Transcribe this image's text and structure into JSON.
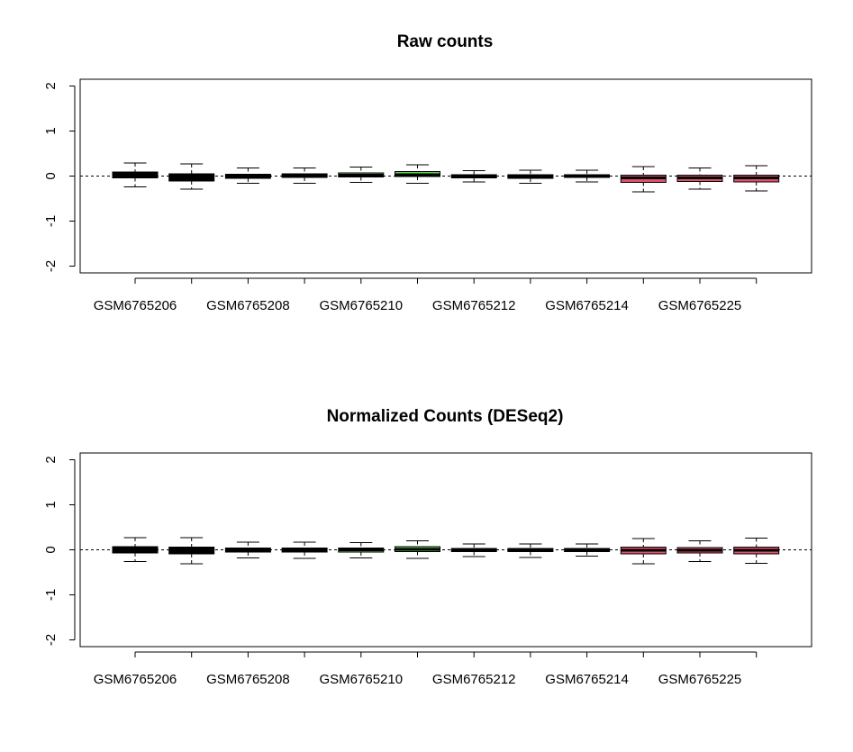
{
  "colors": {
    "black": "#000000",
    "green": "#61D04F",
    "red": "#DF536B",
    "outline": "#000000"
  },
  "chart_data": [
    {
      "type": "boxplot",
      "title": "Raw counts",
      "xlabel": "",
      "ylabel": "",
      "ylim": [
        -2.15,
        2.15
      ],
      "yticks": [
        -2,
        -1,
        0,
        1,
        2
      ],
      "xtick_labels": [
        "GSM6765206",
        "GSM6765208",
        "GSM6765210",
        "GSM6765212",
        "GSM6765214",
        "GSM6765225"
      ],
      "reference_line": 0,
      "boxes": [
        {
          "color": "black",
          "whisker_low": -0.24,
          "q1": -0.04,
          "median": 0.02,
          "q3": 0.09,
          "whisker_high": 0.29
        },
        {
          "color": "black",
          "whisker_low": -0.29,
          "q1": -0.11,
          "median": -0.03,
          "q3": 0.05,
          "whisker_high": 0.27
        },
        {
          "color": "black",
          "whisker_low": -0.16,
          "q1": -0.05,
          "median": 0.0,
          "q3": 0.04,
          "whisker_high": 0.18
        },
        {
          "color": "green",
          "whisker_low": -0.16,
          "q1": -0.03,
          "median": 0.01,
          "q3": 0.05,
          "whisker_high": 0.18
        },
        {
          "color": "green",
          "whisker_low": -0.14,
          "q1": -0.02,
          "median": 0.02,
          "q3": 0.07,
          "whisker_high": 0.2
        },
        {
          "color": "green",
          "whisker_low": -0.16,
          "q1": -0.01,
          "median": 0.03,
          "q3": 0.1,
          "whisker_high": 0.25
        },
        {
          "color": "black",
          "whisker_low": -0.13,
          "q1": -0.04,
          "median": -0.01,
          "q3": 0.03,
          "whisker_high": 0.12
        },
        {
          "color": "black",
          "whisker_low": -0.16,
          "q1": -0.05,
          "median": -0.01,
          "q3": 0.03,
          "whisker_high": 0.13
        },
        {
          "color": "black",
          "whisker_low": -0.13,
          "q1": -0.03,
          "median": 0.0,
          "q3": 0.03,
          "whisker_high": 0.13
        },
        {
          "color": "red",
          "whisker_low": -0.35,
          "q1": -0.14,
          "median": -0.04,
          "q3": 0.02,
          "whisker_high": 0.21
        },
        {
          "color": "red",
          "whisker_low": -0.29,
          "q1": -0.12,
          "median": -0.04,
          "q3": 0.02,
          "whisker_high": 0.18
        },
        {
          "color": "red",
          "whisker_low": -0.33,
          "q1": -0.13,
          "median": -0.04,
          "q3": 0.02,
          "whisker_high": 0.23
        }
      ]
    },
    {
      "type": "boxplot",
      "title": "Normalized Counts (DESeq2)",
      "xlabel": "",
      "ylabel": "",
      "ylim": [
        -2.15,
        2.15
      ],
      "yticks": [
        -2,
        -1,
        0,
        1,
        2
      ],
      "xtick_labels": [
        "GSM6765206",
        "GSM6765208",
        "GSM6765210",
        "GSM6765212",
        "GSM6765214",
        "GSM6765225"
      ],
      "reference_line": 0,
      "boxes": [
        {
          "color": "black",
          "whisker_low": -0.26,
          "q1": -0.07,
          "median": 0.0,
          "q3": 0.07,
          "whisker_high": 0.27
        },
        {
          "color": "black",
          "whisker_low": -0.31,
          "q1": -0.09,
          "median": -0.01,
          "q3": 0.06,
          "whisker_high": 0.27
        },
        {
          "color": "black",
          "whisker_low": -0.18,
          "q1": -0.05,
          "median": 0.0,
          "q3": 0.04,
          "whisker_high": 0.17
        },
        {
          "color": "black",
          "whisker_low": -0.19,
          "q1": -0.05,
          "median": 0.0,
          "q3": 0.04,
          "whisker_high": 0.17
        },
        {
          "color": "green",
          "whisker_low": -0.18,
          "q1": -0.05,
          "median": 0.0,
          "q3": 0.04,
          "whisker_high": 0.16
        },
        {
          "color": "green",
          "whisker_low": -0.19,
          "q1": -0.04,
          "median": 0.01,
          "q3": 0.07,
          "whisker_high": 0.2
        },
        {
          "color": "black",
          "whisker_low": -0.15,
          "q1": -0.04,
          "median": 0.0,
          "q3": 0.03,
          "whisker_high": 0.13
        },
        {
          "color": "black",
          "whisker_low": -0.17,
          "q1": -0.04,
          "median": 0.0,
          "q3": 0.03,
          "whisker_high": 0.13
        },
        {
          "color": "black",
          "whisker_low": -0.14,
          "q1": -0.04,
          "median": 0.0,
          "q3": 0.03,
          "whisker_high": 0.13
        },
        {
          "color": "red",
          "whisker_low": -0.31,
          "q1": -0.09,
          "median": -0.01,
          "q3": 0.06,
          "whisker_high": 0.25
        },
        {
          "color": "red",
          "whisker_low": -0.26,
          "q1": -0.07,
          "median": -0.01,
          "q3": 0.05,
          "whisker_high": 0.2
        },
        {
          "color": "red",
          "whisker_low": -0.3,
          "q1": -0.09,
          "median": -0.01,
          "q3": 0.06,
          "whisker_high": 0.26
        }
      ]
    }
  ]
}
